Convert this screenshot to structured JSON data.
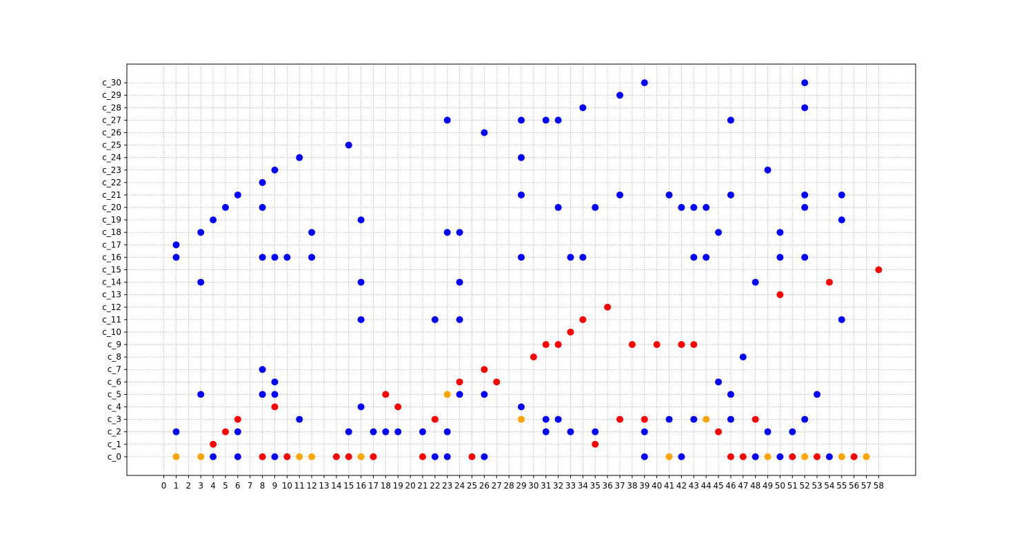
{
  "chart_data": {
    "type": "scatter",
    "title": "",
    "xlabel": "",
    "ylabel": "",
    "xlim": [
      -3,
      61
    ],
    "ylim": [
      -1.5,
      31.5
    ],
    "grid": true,
    "x_ticks": [
      0,
      1,
      2,
      3,
      4,
      5,
      6,
      7,
      8,
      9,
      10,
      11,
      12,
      13,
      14,
      15,
      16,
      17,
      18,
      19,
      20,
      21,
      22,
      23,
      24,
      25,
      26,
      27,
      28,
      29,
      30,
      31,
      32,
      33,
      34,
      35,
      36,
      37,
      38,
      39,
      40,
      41,
      42,
      43,
      44,
      45,
      46,
      47,
      48,
      49,
      50,
      51,
      52,
      53,
      54,
      55,
      56,
      57,
      58
    ],
    "y_categories": [
      "c_0",
      "c_1",
      "c_2",
      "c_3",
      "c_4",
      "c_5",
      "c_6",
      "c_7",
      "c_8",
      "c_9",
      "c_10",
      "c_11",
      "c_12",
      "c_13",
      "c_14",
      "c_15",
      "c_16",
      "c_17",
      "c_18",
      "c_19",
      "c_20",
      "c_21",
      "c_22",
      "c_23",
      "c_24",
      "c_25",
      "c_26",
      "c_27",
      "c_28",
      "c_29",
      "c_30"
    ],
    "series": [
      {
        "color": "#0000ff",
        "points": [
          [
            1,
            17
          ],
          [
            1,
            16
          ],
          [
            1,
            2
          ],
          [
            3,
            18
          ],
          [
            3,
            14
          ],
          [
            3,
            5
          ],
          [
            4,
            19
          ],
          [
            4,
            0
          ],
          [
            5,
            20
          ],
          [
            6,
            21
          ],
          [
            6,
            2
          ],
          [
            6,
            0
          ],
          [
            8,
            22
          ],
          [
            8,
            20
          ],
          [
            8,
            16
          ],
          [
            8,
            7
          ],
          [
            8,
            5
          ],
          [
            9,
            23
          ],
          [
            9,
            16
          ],
          [
            9,
            6
          ],
          [
            9,
            5
          ],
          [
            9,
            0
          ],
          [
            10,
            16
          ],
          [
            11,
            24
          ],
          [
            11,
            3
          ],
          [
            12,
            18
          ],
          [
            12,
            16
          ],
          [
            15,
            25
          ],
          [
            15,
            2
          ],
          [
            16,
            19
          ],
          [
            16,
            14
          ],
          [
            16,
            11
          ],
          [
            16,
            4
          ],
          [
            17,
            2
          ],
          [
            18,
            2
          ],
          [
            19,
            2
          ],
          [
            21,
            2
          ],
          [
            22,
            11
          ],
          [
            22,
            0
          ],
          [
            23,
            27
          ],
          [
            23,
            18
          ],
          [
            23,
            2
          ],
          [
            23,
            0
          ],
          [
            24,
            18
          ],
          [
            24,
            14
          ],
          [
            24,
            11
          ],
          [
            24,
            5
          ],
          [
            26,
            26
          ],
          [
            26,
            5
          ],
          [
            26,
            0
          ],
          [
            29,
            27
          ],
          [
            29,
            24
          ],
          [
            29,
            21
          ],
          [
            29,
            16
          ],
          [
            29,
            4
          ],
          [
            31,
            27
          ],
          [
            31,
            3
          ],
          [
            31,
            2
          ],
          [
            32,
            27
          ],
          [
            32,
            20
          ],
          [
            32,
            3
          ],
          [
            33,
            16
          ],
          [
            33,
            2
          ],
          [
            34,
            28
          ],
          [
            34,
            16
          ],
          [
            35,
            20
          ],
          [
            35,
            2
          ],
          [
            37,
            29
          ],
          [
            37,
            21
          ],
          [
            39,
            30
          ],
          [
            39,
            2
          ],
          [
            39,
            0
          ],
          [
            41,
            21
          ],
          [
            41,
            3
          ],
          [
            42,
            20
          ],
          [
            42,
            0
          ],
          [
            43,
            20
          ],
          [
            43,
            16
          ],
          [
            43,
            3
          ],
          [
            44,
            20
          ],
          [
            44,
            16
          ],
          [
            45,
            18
          ],
          [
            45,
            6
          ],
          [
            46,
            27
          ],
          [
            46,
            21
          ],
          [
            46,
            5
          ],
          [
            46,
            3
          ],
          [
            47,
            8
          ],
          [
            48,
            14
          ],
          [
            48,
            0
          ],
          [
            49,
            23
          ],
          [
            49,
            2
          ],
          [
            50,
            18
          ],
          [
            50,
            16
          ],
          [
            50,
            0
          ],
          [
            51,
            2
          ],
          [
            52,
            30
          ],
          [
            52,
            28
          ],
          [
            52,
            21
          ],
          [
            52,
            20
          ],
          [
            52,
            16
          ],
          [
            52,
            3
          ],
          [
            53,
            5
          ],
          [
            54,
            0
          ],
          [
            55,
            21
          ],
          [
            55,
            19
          ],
          [
            55,
            11
          ]
        ]
      },
      {
        "color": "#ff0000",
        "points": [
          [
            4,
            1
          ],
          [
            5,
            2
          ],
          [
            6,
            3
          ],
          [
            8,
            0
          ],
          [
            9,
            4
          ],
          [
            10,
            0
          ],
          [
            14,
            0
          ],
          [
            15,
            0
          ],
          [
            17,
            0
          ],
          [
            18,
            5
          ],
          [
            19,
            4
          ],
          [
            21,
            0
          ],
          [
            22,
            3
          ],
          [
            24,
            6
          ],
          [
            25,
            0
          ],
          [
            26,
            7
          ],
          [
            27,
            6
          ],
          [
            30,
            8
          ],
          [
            31,
            9
          ],
          [
            32,
            9
          ],
          [
            33,
            10
          ],
          [
            34,
            11
          ],
          [
            35,
            1
          ],
          [
            36,
            12
          ],
          [
            37,
            3
          ],
          [
            38,
            9
          ],
          [
            39,
            3
          ],
          [
            40,
            9
          ],
          [
            42,
            9
          ],
          [
            43,
            9
          ],
          [
            45,
            2
          ],
          [
            46,
            0
          ],
          [
            47,
            0
          ],
          [
            48,
            3
          ],
          [
            50,
            13
          ],
          [
            51,
            0
          ],
          [
            53,
            0
          ],
          [
            54,
            14
          ],
          [
            56,
            0
          ],
          [
            58,
            15
          ]
        ]
      },
      {
        "color": "#ffa500",
        "points": [
          [
            1,
            0
          ],
          [
            3,
            0
          ],
          [
            11,
            0
          ],
          [
            12,
            0
          ],
          [
            16,
            0
          ],
          [
            23,
            5
          ],
          [
            29,
            3
          ],
          [
            41,
            0
          ],
          [
            44,
            3
          ],
          [
            49,
            0
          ],
          [
            52,
            0
          ],
          [
            55,
            0
          ],
          [
            57,
            0
          ]
        ]
      }
    ]
  }
}
